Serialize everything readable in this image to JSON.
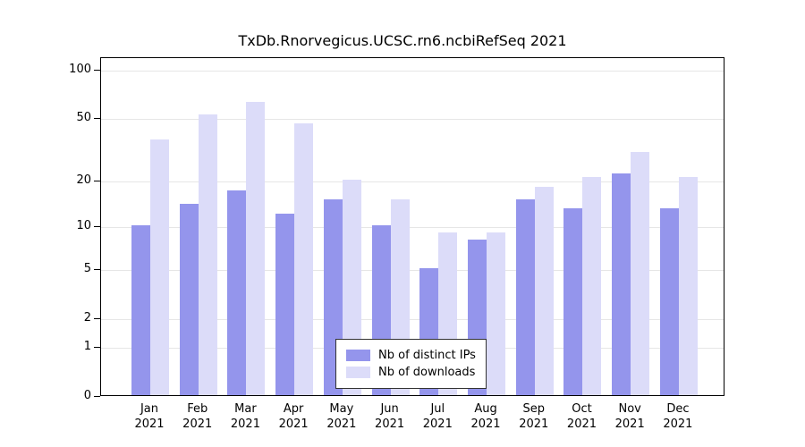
{
  "chart_data": {
    "type": "bar",
    "title": "TxDb.Rnorvegicus.UCSC.rn6.ncbiRefSeq 2021",
    "year": "2021",
    "categories": [
      "Jan",
      "Feb",
      "Mar",
      "Apr",
      "May",
      "Jun",
      "Jul",
      "Aug",
      "Sep",
      "Oct",
      "Nov",
      "Dec"
    ],
    "series": [
      {
        "name": "Nb of distinct IPs",
        "color": "#9495ec",
        "values": [
          10,
          14,
          17,
          12,
          15,
          10,
          5,
          8,
          15,
          13,
          22,
          13
        ]
      },
      {
        "name": "Nb of downloads",
        "color": "#dcdcf9",
        "values": [
          36,
          52,
          62,
          46,
          20,
          15,
          9,
          9,
          18,
          21,
          30,
          21
        ]
      }
    ],
    "yticks": [
      0,
      1,
      2,
      5,
      10,
      20,
      50,
      100
    ],
    "ylim": [
      0,
      100
    ],
    "yscale": "log1p",
    "grid": true,
    "legend_position": "inside-bottom-center",
    "xlabel": "",
    "ylabel": ""
  }
}
